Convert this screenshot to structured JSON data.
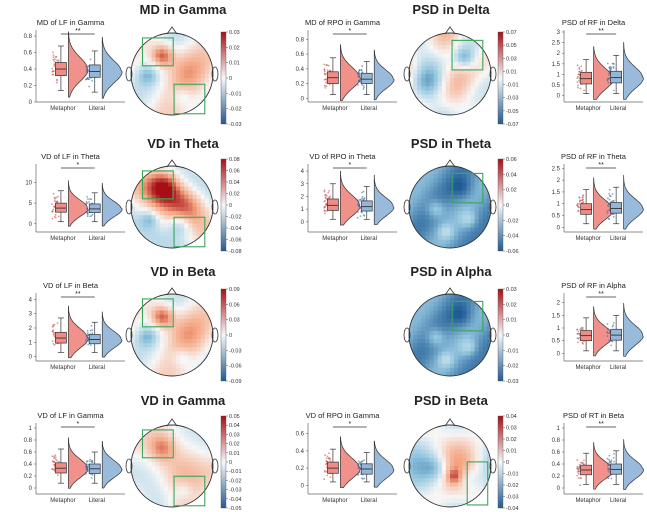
{
  "figure": {
    "row_titles": [
      "MD in Gamma",
      "VD in Theta",
      "VD in Beta",
      "VD in Gamma"
    ],
    "right_titles": [
      "PSD in Delta",
      "PSD in Theta",
      "PSD in Alpha",
      "PSD in Beta"
    ]
  },
  "colors": {
    "metaphor_fill": "#f08b86",
    "metaphor_edge": "#c0504d",
    "literal_fill": "#93b6d9",
    "literal_edge": "#3d6a98",
    "roi_box": "#3aa65a",
    "cmap_high": "#a50f15",
    "cmap_mid": "#f7f7f7",
    "cmap_low": "#1f5a94"
  },
  "chart_data": [
    {
      "type": "box_violin",
      "id": "p1",
      "title": "MD of LF in Gamma",
      "categories": [
        "Metaphor",
        "Literal"
      ],
      "ylim": [
        0,
        0.85
      ],
      "yticks": [
        "0",
        "0.2",
        "0.4",
        "0.6",
        "0.8"
      ],
      "significance": "**",
      "series": [
        {
          "name": "Metaphor",
          "median": 0.4,
          "q1": 0.32,
          "q3": 0.48,
          "whisker_low": 0.14,
          "whisker_high": 0.68
        },
        {
          "name": "Literal",
          "median": 0.37,
          "q1": 0.3,
          "q3": 0.45,
          "whisker_low": 0.12,
          "whisker_high": 0.62
        }
      ]
    },
    {
      "type": "box_violin",
      "id": "p2",
      "title": "MD of RPO in Gamma",
      "categories": [
        "Metaphor",
        "Literal"
      ],
      "ylim": [
        -0.05,
        0.9
      ],
      "yticks": [
        "0",
        "0.2",
        "0.4",
        "0.6",
        "0.8"
      ],
      "significance": "*",
      "series": [
        {
          "name": "Metaphor",
          "median": 0.28,
          "q1": 0.2,
          "q3": 0.36,
          "whisker_low": 0.05,
          "whisker_high": 0.55
        },
        {
          "name": "Literal",
          "median": 0.26,
          "q1": 0.2,
          "q3": 0.34,
          "whisker_low": 0.05,
          "whisker_high": 0.5
        }
      ]
    },
    {
      "type": "box_violin",
      "id": "p3",
      "title": "PSD of RF in Delta",
      "categories": [
        "Metaphor",
        "Literal"
      ],
      "ylim": [
        -0.3,
        3
      ],
      "yticks": [
        "0",
        "0.5",
        "1",
        "1.5",
        "2",
        "2.5",
        "3"
      ],
      "significance": "**",
      "series": [
        {
          "name": "Metaphor",
          "median": 0.8,
          "q1": 0.55,
          "q3": 1.1,
          "whisker_low": 0.1,
          "whisker_high": 1.7
        },
        {
          "name": "Literal",
          "median": 0.85,
          "q1": 0.6,
          "q3": 1.15,
          "whisker_low": 0.1,
          "whisker_high": 1.9
        }
      ]
    },
    {
      "type": "box_violin",
      "id": "p4",
      "title": "VD of LF in Theta",
      "categories": [
        "Metaphor",
        "Literal"
      ],
      "ylim": [
        -2,
        14
      ],
      "yticks": [
        "0",
        "5",
        "10"
      ],
      "significance": "*",
      "series": [
        {
          "name": "Metaphor",
          "median": 3.8,
          "q1": 2.8,
          "q3": 5.0,
          "whisker_low": 0.5,
          "whisker_high": 8.0
        },
        {
          "name": "Literal",
          "median": 3.6,
          "q1": 2.7,
          "q3": 4.8,
          "whisker_low": 0.5,
          "whisker_high": 7.5
        }
      ]
    },
    {
      "type": "box_violin",
      "id": "p5",
      "title": "VD of RPO in Theta",
      "categories": [
        "Metaphor",
        "Literal"
      ],
      "ylim": [
        -0.8,
        4.4
      ],
      "yticks": [
        "0",
        "1",
        "2",
        "3",
        "4"
      ],
      "significance": "*",
      "series": [
        {
          "name": "Metaphor",
          "median": 1.3,
          "q1": 0.9,
          "q3": 1.8,
          "whisker_low": 0.2,
          "whisker_high": 3.0
        },
        {
          "name": "Literal",
          "median": 1.2,
          "q1": 0.85,
          "q3": 1.65,
          "whisker_low": 0.2,
          "whisker_high": 2.8
        }
      ]
    },
    {
      "type": "box_violin",
      "id": "p6",
      "title": "PSD of RF in Theta",
      "categories": [
        "Metaphor",
        "Literal"
      ],
      "ylim": [
        -0.2,
        2.6
      ],
      "yticks": [
        "0",
        "0.5",
        "1",
        "1.5",
        "2",
        "2.5"
      ],
      "significance": "**",
      "series": [
        {
          "name": "Metaphor",
          "median": 0.75,
          "q1": 0.55,
          "q3": 1.0,
          "whisker_low": 0.15,
          "whisker_high": 1.6
        },
        {
          "name": "Literal",
          "median": 0.8,
          "q1": 0.6,
          "q3": 1.05,
          "whisker_low": 0.15,
          "whisker_high": 1.7
        }
      ]
    },
    {
      "type": "box_violin",
      "id": "p7",
      "title": "VD of LF in Beta",
      "categories": [
        "Metaphor",
        "Literal"
      ],
      "ylim": [
        -0.3,
        4.3
      ],
      "yticks": [
        "0",
        "1",
        "2",
        "3",
        "4"
      ],
      "significance": "**",
      "series": [
        {
          "name": "Metaphor",
          "median": 1.3,
          "q1": 0.95,
          "q3": 1.7,
          "whisker_low": 0.3,
          "whisker_high": 2.7
        },
        {
          "name": "Literal",
          "median": 1.2,
          "q1": 0.9,
          "q3": 1.55,
          "whisker_low": 0.3,
          "whisker_high": 2.4
        }
      ]
    },
    {
      "type": "box_violin",
      "id": "p8",
      "title": "PSD of RF in Alpha",
      "categories": [
        "Metaphor",
        "Literal"
      ],
      "ylim": [
        -0.3,
        2.3
      ],
      "yticks": [
        "0",
        "0.5",
        "1",
        "1.5",
        "2"
      ],
      "significance": "**",
      "series": [
        {
          "name": "Metaphor",
          "median": 0.7,
          "q1": 0.5,
          "q3": 0.9,
          "whisker_low": 0.1,
          "whisker_high": 1.4
        },
        {
          "name": "Literal",
          "median": 0.72,
          "q1": 0.52,
          "q3": 0.95,
          "whisker_low": 0.1,
          "whisker_high": 1.5
        }
      ]
    },
    {
      "type": "box_violin",
      "id": "p9",
      "title": "VD of LF in Gamma",
      "categories": [
        "Metaphor",
        "Literal"
      ],
      "ylim": [
        -0.1,
        1.05
      ],
      "yticks": [
        "0",
        "0.2",
        "0.4",
        "0.6",
        "0.8",
        "1"
      ],
      "significance": "*",
      "series": [
        {
          "name": "Metaphor",
          "median": 0.33,
          "q1": 0.25,
          "q3": 0.42,
          "whisker_low": 0.08,
          "whisker_high": 0.65
        },
        {
          "name": "Literal",
          "median": 0.32,
          "q1": 0.24,
          "q3": 0.4,
          "whisker_low": 0.08,
          "whisker_high": 0.6
        }
      ]
    },
    {
      "type": "box_violin",
      "id": "p10",
      "title": "VD of RPO in Gamma",
      "categories": [
        "Metaphor",
        "Literal"
      ],
      "ylim": [
        -0.1,
        0.7
      ],
      "yticks": [
        "0",
        "0.2",
        "0.4",
        "0.6"
      ],
      "significance": "*",
      "series": [
        {
          "name": "Metaphor",
          "median": 0.2,
          "q1": 0.14,
          "q3": 0.27,
          "whisker_low": 0.04,
          "whisker_high": 0.42
        },
        {
          "name": "Literal",
          "median": 0.19,
          "q1": 0.13,
          "q3": 0.25,
          "whisker_low": 0.04,
          "whisker_high": 0.38
        }
      ]
    },
    {
      "type": "box_violin",
      "id": "p11",
      "title": "PSD of RT in Beta",
      "categories": [
        "Metaphor",
        "Literal"
      ],
      "ylim": [
        -0.1,
        1.05
      ],
      "yticks": [
        "0",
        "0.2",
        "0.4",
        "0.6",
        "0.8",
        "1"
      ],
      "significance": "**",
      "series": [
        {
          "name": "Metaphor",
          "median": 0.3,
          "q1": 0.22,
          "q3": 0.38,
          "whisker_low": 0.06,
          "whisker_high": 0.58
        },
        {
          "name": "Literal",
          "median": 0.31,
          "q1": 0.23,
          "q3": 0.4,
          "whisker_low": 0.06,
          "whisker_high": 0.62
        }
      ]
    },
    {
      "type": "heatmap",
      "id": "t1",
      "title": "MD in Gamma",
      "colorbar_ticks": [
        "0.03",
        "0.02",
        "0.01",
        "0",
        "-0.01",
        "-0.02",
        "-0.03"
      ],
      "roi": [
        "left-frontal",
        "right-posterior"
      ],
      "pattern": "warm-frontal"
    },
    {
      "type": "heatmap",
      "id": "t2",
      "title": "VD in Theta",
      "colorbar_ticks": [
        "0.08",
        "0.06",
        "0.04",
        "0.02",
        "0",
        "-0.02",
        "-0.04",
        "-0.06",
        "-0.08"
      ],
      "roi": [
        "left-frontal",
        "right-posterior"
      ],
      "pattern": "warm-strong"
    },
    {
      "type": "heatmap",
      "id": "t3",
      "title": "VD in Beta",
      "colorbar_ticks": [
        "0.09",
        "0.06",
        "0.03",
        "0",
        "-0.03",
        "-0.06",
        "-0.09"
      ],
      "roi": [
        "left-frontal"
      ],
      "pattern": "warm-frontal"
    },
    {
      "type": "heatmap",
      "id": "t4",
      "title": "VD in Gamma",
      "colorbar_ticks": [
        "0.05",
        "0.04",
        "0.03",
        "0.02",
        "0.01",
        "0",
        "-0.01",
        "-0.02",
        "-0.03",
        "-0.04",
        "-0.05"
      ],
      "roi": [
        "left-frontal",
        "right-posterior"
      ],
      "pattern": "warm-light"
    },
    {
      "type": "heatmap",
      "id": "t5",
      "title": "PSD in Delta",
      "colorbar_ticks": [
        "0.07",
        "0.05",
        "0.03",
        "0.01",
        "-0.01",
        "-0.03",
        "-0.05",
        "-0.07"
      ],
      "roi": [
        "right-frontal"
      ],
      "pattern": "cool-light"
    },
    {
      "type": "heatmap",
      "id": "t6",
      "title": "PSD in Theta",
      "colorbar_ticks": [
        "0.06",
        "0.04",
        "0.02",
        "0",
        "-0.02",
        "-0.04",
        "-0.06"
      ],
      "roi": [
        "right-frontal"
      ],
      "pattern": "cool-strong"
    },
    {
      "type": "heatmap",
      "id": "t7",
      "title": "PSD in Alpha",
      "colorbar_ticks": [
        "0.03",
        "0.02",
        "0.01",
        "0",
        "-0.01",
        "-0.02",
        "-0.03"
      ],
      "roi": [
        "right-frontal"
      ],
      "pattern": "cool-strong"
    },
    {
      "type": "heatmap",
      "id": "t8",
      "title": "PSD in Beta",
      "colorbar_ticks": [
        "0.04",
        "0.03",
        "0.02",
        "0.01",
        "0",
        "-0.01",
        "-0.02",
        "-0.03",
        "-0.04"
      ],
      "roi": [
        "right-temporal"
      ],
      "pattern": "mixed"
    }
  ]
}
